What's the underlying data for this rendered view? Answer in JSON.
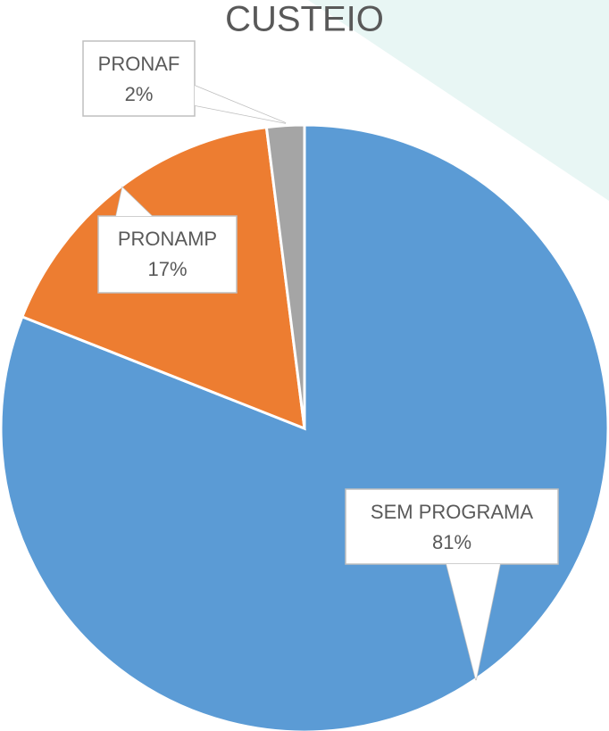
{
  "chart_data": {
    "type": "pie",
    "title": "CUSTEIO",
    "categories": [
      "SEM PROGRAMA",
      "PRONAMP",
      "PRONAF"
    ],
    "values": [
      81,
      17,
      2
    ],
    "value_labels": [
      "81%",
      "17%",
      "2%"
    ],
    "colors": [
      "#5b9bd5",
      "#ed7d31",
      "#a5a5a5"
    ]
  }
}
